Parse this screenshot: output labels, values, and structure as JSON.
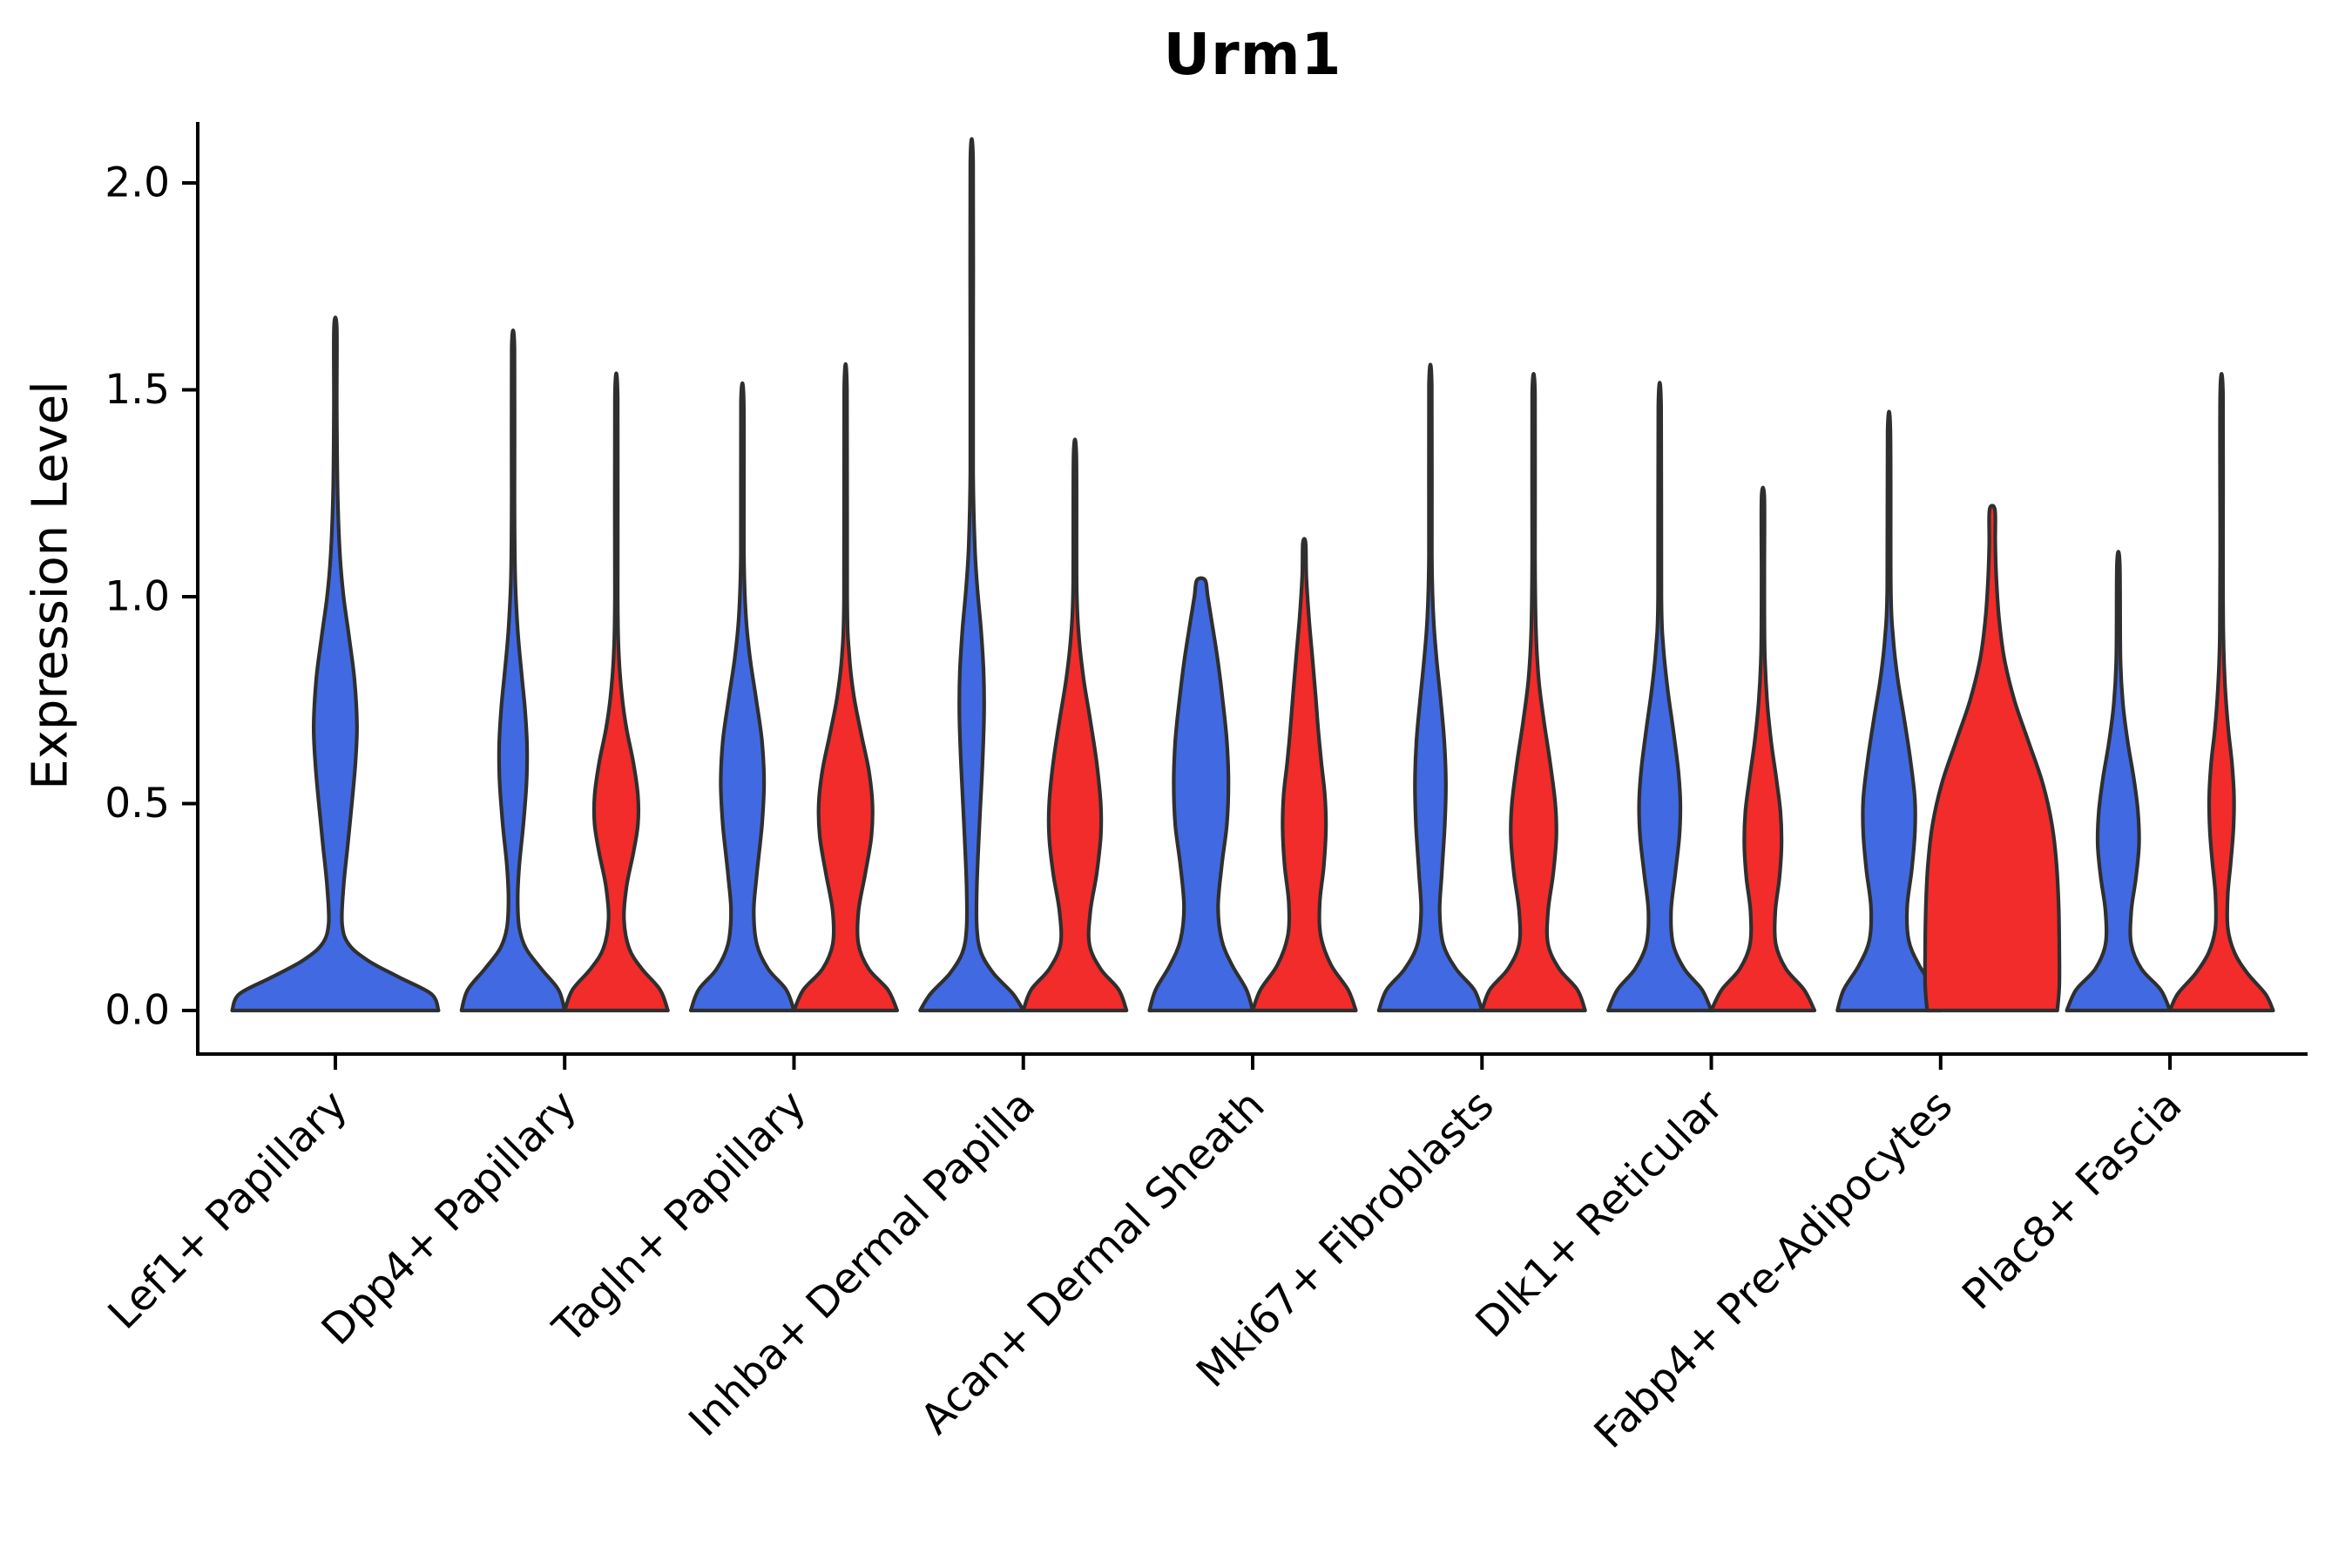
{
  "figure": {
    "title": "Urm1",
    "ylabel": "Expression Level"
  },
  "chart_data": {
    "type": "violin",
    "title": "Urm1",
    "xlabel": "",
    "ylabel": "Expression Level",
    "ylim": [
      -0.1,
      2.15
    ],
    "grid": false,
    "legend_position": "none",
    "y_ticks": [
      {
        "label": "0.0",
        "value": 0.0
      },
      {
        "label": "0.5",
        "value": 0.5
      },
      {
        "label": "1.0",
        "value": 1.0
      },
      {
        "label": "1.5",
        "value": 1.5
      },
      {
        "label": "2.0",
        "value": 2.0
      }
    ],
    "split_series": [
      {
        "name": "split-blue",
        "color": "#4169E1"
      },
      {
        "name": "split-red",
        "color": "#F22B2B"
      }
    ],
    "outline_color": "#2f2f2f",
    "axis_color": "#000000",
    "categories": [
      "Lef1+ Papillary",
      "Dpp4+ Papillary",
      "Tagln+ Papillary",
      "Inhba+ Dermal Papilla",
      "Acan+ Dermal Sheath",
      "Mki67+ Fibroblasts",
      "Dlk1+ Reticular",
      "Fabp4+ Pre-Adipocytes",
      "Plac8+ Fascia"
    ],
    "violins": [
      {
        "category_index": 0,
        "split": "split-blue",
        "max": 1.65,
        "mode": 0.69,
        "width_scale": 2.0,
        "offset": 0,
        "profile": [
          [
            0,
            1
          ],
          [
            0.04,
            0.93
          ],
          [
            0.08,
            0.62
          ],
          [
            0.12,
            0.32
          ],
          [
            0.16,
            0.13
          ],
          [
            0.21,
            0.065
          ],
          [
            0.3,
            0.08
          ],
          [
            0.4,
            0.12
          ],
          [
            0.5,
            0.16
          ],
          [
            0.6,
            0.195
          ],
          [
            0.69,
            0.21
          ],
          [
            0.8,
            0.185
          ],
          [
            0.9,
            0.135
          ],
          [
            1.0,
            0.08
          ],
          [
            1.1,
            0.045
          ],
          [
            1.25,
            0.022
          ],
          [
            1.45,
            0.014
          ],
          [
            1.65,
            0.012
          ]
        ]
      },
      {
        "category_index": 1,
        "split": "split-blue",
        "max": 1.6,
        "mode": 0.64,
        "width_scale": 1.0,
        "offset": -1,
        "profile": [
          [
            0,
            1
          ],
          [
            0.05,
            0.88
          ],
          [
            0.1,
            0.55
          ],
          [
            0.15,
            0.25
          ],
          [
            0.2,
            0.12
          ],
          [
            0.27,
            0.09
          ],
          [
            0.35,
            0.12
          ],
          [
            0.45,
            0.2
          ],
          [
            0.55,
            0.26
          ],
          [
            0.64,
            0.27
          ],
          [
            0.73,
            0.23
          ],
          [
            0.82,
            0.16
          ],
          [
            0.92,
            0.09
          ],
          [
            1.05,
            0.04
          ],
          [
            1.25,
            0.02
          ],
          [
            1.6,
            0.012
          ]
        ]
      },
      {
        "category_index": 1,
        "split": "split-red",
        "max": 1.48,
        "mode": 0.48,
        "width_scale": 1.0,
        "offset": 1,
        "profile": [
          [
            0,
            1
          ],
          [
            0.05,
            0.85
          ],
          [
            0.1,
            0.5
          ],
          [
            0.15,
            0.25
          ],
          [
            0.22,
            0.15
          ],
          [
            0.3,
            0.2
          ],
          [
            0.38,
            0.33
          ],
          [
            0.45,
            0.42
          ],
          [
            0.52,
            0.42
          ],
          [
            0.6,
            0.33
          ],
          [
            0.68,
            0.2
          ],
          [
            0.76,
            0.11
          ],
          [
            0.86,
            0.05
          ],
          [
            1.0,
            0.025
          ],
          [
            1.48,
            0.013
          ]
        ]
      },
      {
        "category_index": 2,
        "split": "split-blue",
        "max": 1.47,
        "mode": 0.55,
        "width_scale": 1.0,
        "offset": -1,
        "profile": [
          [
            0,
            1
          ],
          [
            0.05,
            0.85
          ],
          [
            0.1,
            0.5
          ],
          [
            0.16,
            0.28
          ],
          [
            0.24,
            0.22
          ],
          [
            0.33,
            0.28
          ],
          [
            0.45,
            0.38
          ],
          [
            0.55,
            0.42
          ],
          [
            0.65,
            0.38
          ],
          [
            0.75,
            0.27
          ],
          [
            0.85,
            0.15
          ],
          [
            0.95,
            0.07
          ],
          [
            1.1,
            0.03
          ],
          [
            1.47,
            0.013
          ]
        ]
      },
      {
        "category_index": 2,
        "split": "split-red",
        "max": 1.5,
        "mode": 0.5,
        "width_scale": 1.0,
        "offset": 1,
        "profile": [
          [
            0,
            1
          ],
          [
            0.05,
            0.82
          ],
          [
            0.1,
            0.45
          ],
          [
            0.16,
            0.25
          ],
          [
            0.24,
            0.25
          ],
          [
            0.33,
            0.38
          ],
          [
            0.42,
            0.5
          ],
          [
            0.5,
            0.52
          ],
          [
            0.58,
            0.45
          ],
          [
            0.67,
            0.3
          ],
          [
            0.76,
            0.16
          ],
          [
            0.86,
            0.07
          ],
          [
            1.0,
            0.03
          ],
          [
            1.5,
            0.012
          ]
        ]
      },
      {
        "category_index": 3,
        "split": "split-blue",
        "max": 2.05,
        "mode": 0.72,
        "width_scale": 1.0,
        "offset": -1,
        "profile": [
          [
            0,
            1
          ],
          [
            0.04,
            0.8
          ],
          [
            0.09,
            0.42
          ],
          [
            0.14,
            0.18
          ],
          [
            0.2,
            0.1
          ],
          [
            0.3,
            0.1
          ],
          [
            0.45,
            0.15
          ],
          [
            0.6,
            0.21
          ],
          [
            0.72,
            0.24
          ],
          [
            0.82,
            0.23
          ],
          [
            0.92,
            0.18
          ],
          [
            1.02,
            0.11
          ],
          [
            1.12,
            0.06
          ],
          [
            1.3,
            0.025
          ],
          [
            1.6,
            0.015
          ],
          [
            2.05,
            0.011
          ]
        ]
      },
      {
        "category_index": 3,
        "split": "split-red",
        "max": 1.34,
        "mode": 0.5,
        "width_scale": 1.0,
        "offset": 1,
        "profile": [
          [
            0,
            1
          ],
          [
            0.05,
            0.85
          ],
          [
            0.1,
            0.5
          ],
          [
            0.16,
            0.28
          ],
          [
            0.24,
            0.3
          ],
          [
            0.33,
            0.42
          ],
          [
            0.42,
            0.5
          ],
          [
            0.5,
            0.5
          ],
          [
            0.6,
            0.42
          ],
          [
            0.7,
            0.3
          ],
          [
            0.8,
            0.17
          ],
          [
            0.9,
            0.08
          ],
          [
            1.02,
            0.035
          ],
          [
            1.34,
            0.013
          ]
        ]
      },
      {
        "category_index": 4,
        "split": "split-blue",
        "max": 1.04,
        "mode": 0.55,
        "width_scale": 1.0,
        "offset": -1,
        "profile": [
          [
            0,
            1
          ],
          [
            0.05,
            0.88
          ],
          [
            0.11,
            0.6
          ],
          [
            0.17,
            0.4
          ],
          [
            0.25,
            0.33
          ],
          [
            0.35,
            0.4
          ],
          [
            0.45,
            0.5
          ],
          [
            0.55,
            0.53
          ],
          [
            0.65,
            0.5
          ],
          [
            0.75,
            0.42
          ],
          [
            0.85,
            0.32
          ],
          [
            0.93,
            0.22
          ],
          [
            1.0,
            0.13
          ],
          [
            1.04,
            0.08
          ]
        ]
      },
      {
        "category_index": 4,
        "split": "split-red",
        "max": 1.13,
        "mode": 0.44,
        "width_scale": 1.0,
        "offset": 1,
        "profile": [
          [
            0,
            1
          ],
          [
            0.05,
            0.85
          ],
          [
            0.11,
            0.52
          ],
          [
            0.18,
            0.32
          ],
          [
            0.26,
            0.3
          ],
          [
            0.35,
            0.38
          ],
          [
            0.44,
            0.42
          ],
          [
            0.52,
            0.4
          ],
          [
            0.6,
            0.33
          ],
          [
            0.68,
            0.27
          ],
          [
            0.76,
            0.22
          ],
          [
            0.85,
            0.16
          ],
          [
            0.95,
            0.09
          ],
          [
            1.05,
            0.04
          ],
          [
            1.13,
            0.02
          ]
        ]
      },
      {
        "category_index": 5,
        "split": "split-blue",
        "max": 1.51,
        "mode": 0.55,
        "width_scale": 1.0,
        "offset": -1,
        "profile": [
          [
            0,
            1
          ],
          [
            0.05,
            0.85
          ],
          [
            0.1,
            0.5
          ],
          [
            0.16,
            0.25
          ],
          [
            0.24,
            0.18
          ],
          [
            0.33,
            0.22
          ],
          [
            0.45,
            0.28
          ],
          [
            0.55,
            0.3
          ],
          [
            0.65,
            0.27
          ],
          [
            0.75,
            0.2
          ],
          [
            0.85,
            0.12
          ],
          [
            0.95,
            0.06
          ],
          [
            1.1,
            0.028
          ],
          [
            1.51,
            0.012
          ]
        ]
      },
      {
        "category_index": 5,
        "split": "split-red",
        "max": 1.49,
        "mode": 0.42,
        "width_scale": 1.0,
        "offset": 1,
        "profile": [
          [
            0,
            1
          ],
          [
            0.05,
            0.85
          ],
          [
            0.1,
            0.5
          ],
          [
            0.16,
            0.28
          ],
          [
            0.24,
            0.28
          ],
          [
            0.33,
            0.38
          ],
          [
            0.42,
            0.44
          ],
          [
            0.5,
            0.42
          ],
          [
            0.6,
            0.32
          ],
          [
            0.7,
            0.2
          ],
          [
            0.8,
            0.1
          ],
          [
            0.92,
            0.045
          ],
          [
            1.1,
            0.02
          ],
          [
            1.49,
            0.012
          ]
        ]
      },
      {
        "category_index": 6,
        "split": "split-blue",
        "max": 1.46,
        "mode": 0.5,
        "width_scale": 1.0,
        "offset": -1,
        "profile": [
          [
            0,
            1
          ],
          [
            0.05,
            0.82
          ],
          [
            0.1,
            0.48
          ],
          [
            0.16,
            0.26
          ],
          [
            0.24,
            0.22
          ],
          [
            0.33,
            0.3
          ],
          [
            0.42,
            0.38
          ],
          [
            0.5,
            0.4
          ],
          [
            0.58,
            0.36
          ],
          [
            0.68,
            0.26
          ],
          [
            0.78,
            0.15
          ],
          [
            0.88,
            0.07
          ],
          [
            1.0,
            0.032
          ],
          [
            1.46,
            0.012
          ]
        ]
      },
      {
        "category_index": 6,
        "split": "split-red",
        "max": 1.24,
        "mode": 0.4,
        "width_scale": 1.0,
        "offset": 1,
        "profile": [
          [
            0,
            1
          ],
          [
            0.05,
            0.8
          ],
          [
            0.1,
            0.45
          ],
          [
            0.16,
            0.25
          ],
          [
            0.24,
            0.24
          ],
          [
            0.32,
            0.32
          ],
          [
            0.4,
            0.36
          ],
          [
            0.48,
            0.34
          ],
          [
            0.56,
            0.26
          ],
          [
            0.65,
            0.16
          ],
          [
            0.75,
            0.08
          ],
          [
            0.87,
            0.035
          ],
          [
            1.05,
            0.018
          ],
          [
            1.24,
            0.012
          ]
        ]
      },
      {
        "category_index": 7,
        "split": "split-blue",
        "max": 1.4,
        "mode": 0.47,
        "width_scale": 1.0,
        "offset": -1,
        "profile": [
          [
            0,
            1
          ],
          [
            0.05,
            0.88
          ],
          [
            0.11,
            0.58
          ],
          [
            0.17,
            0.38
          ],
          [
            0.25,
            0.35
          ],
          [
            0.34,
            0.44
          ],
          [
            0.43,
            0.5
          ],
          [
            0.51,
            0.5
          ],
          [
            0.6,
            0.42
          ],
          [
            0.7,
            0.3
          ],
          [
            0.8,
            0.17
          ],
          [
            0.9,
            0.08
          ],
          [
            1.02,
            0.035
          ],
          [
            1.4,
            0.012
          ]
        ]
      },
      {
        "category_index": 7,
        "split": "split-red",
        "max": 1.21,
        "mode": 0.35,
        "width_scale": 1.3,
        "offset": 1,
        "profile": [
          [
            0,
            0.97
          ],
          [
            0.06,
            1
          ],
          [
            0.15,
            1
          ],
          [
            0.25,
            0.99
          ],
          [
            0.35,
            0.96
          ],
          [
            0.45,
            0.89
          ],
          [
            0.55,
            0.75
          ],
          [
            0.65,
            0.54
          ],
          [
            0.75,
            0.33
          ],
          [
            0.85,
            0.18
          ],
          [
            0.95,
            0.1
          ],
          [
            1.05,
            0.06
          ],
          [
            1.13,
            0.045
          ],
          [
            1.21,
            0.04
          ]
        ]
      },
      {
        "category_index": 8,
        "split": "split-blue",
        "max": 1.08,
        "mode": 0.4,
        "width_scale": 1.0,
        "offset": -1,
        "profile": [
          [
            0,
            1
          ],
          [
            0.05,
            0.82
          ],
          [
            0.1,
            0.45
          ],
          [
            0.16,
            0.25
          ],
          [
            0.24,
            0.25
          ],
          [
            0.32,
            0.34
          ],
          [
            0.4,
            0.4
          ],
          [
            0.48,
            0.38
          ],
          [
            0.56,
            0.3
          ],
          [
            0.65,
            0.18
          ],
          [
            0.74,
            0.09
          ],
          [
            0.85,
            0.04
          ],
          [
            1.08,
            0.015
          ]
        ]
      },
      {
        "category_index": 8,
        "split": "split-red",
        "max": 1.49,
        "mode": 0.52,
        "width_scale": 1.0,
        "offset": 1,
        "profile": [
          [
            0,
            1
          ],
          [
            0.04,
            0.85
          ],
          [
            0.09,
            0.5
          ],
          [
            0.14,
            0.25
          ],
          [
            0.2,
            0.12
          ],
          [
            0.28,
            0.12
          ],
          [
            0.36,
            0.18
          ],
          [
            0.44,
            0.23
          ],
          [
            0.52,
            0.24
          ],
          [
            0.6,
            0.2
          ],
          [
            0.68,
            0.13
          ],
          [
            0.78,
            0.07
          ],
          [
            0.9,
            0.035
          ],
          [
            1.1,
            0.018
          ],
          [
            1.49,
            0.012
          ]
        ]
      }
    ]
  }
}
